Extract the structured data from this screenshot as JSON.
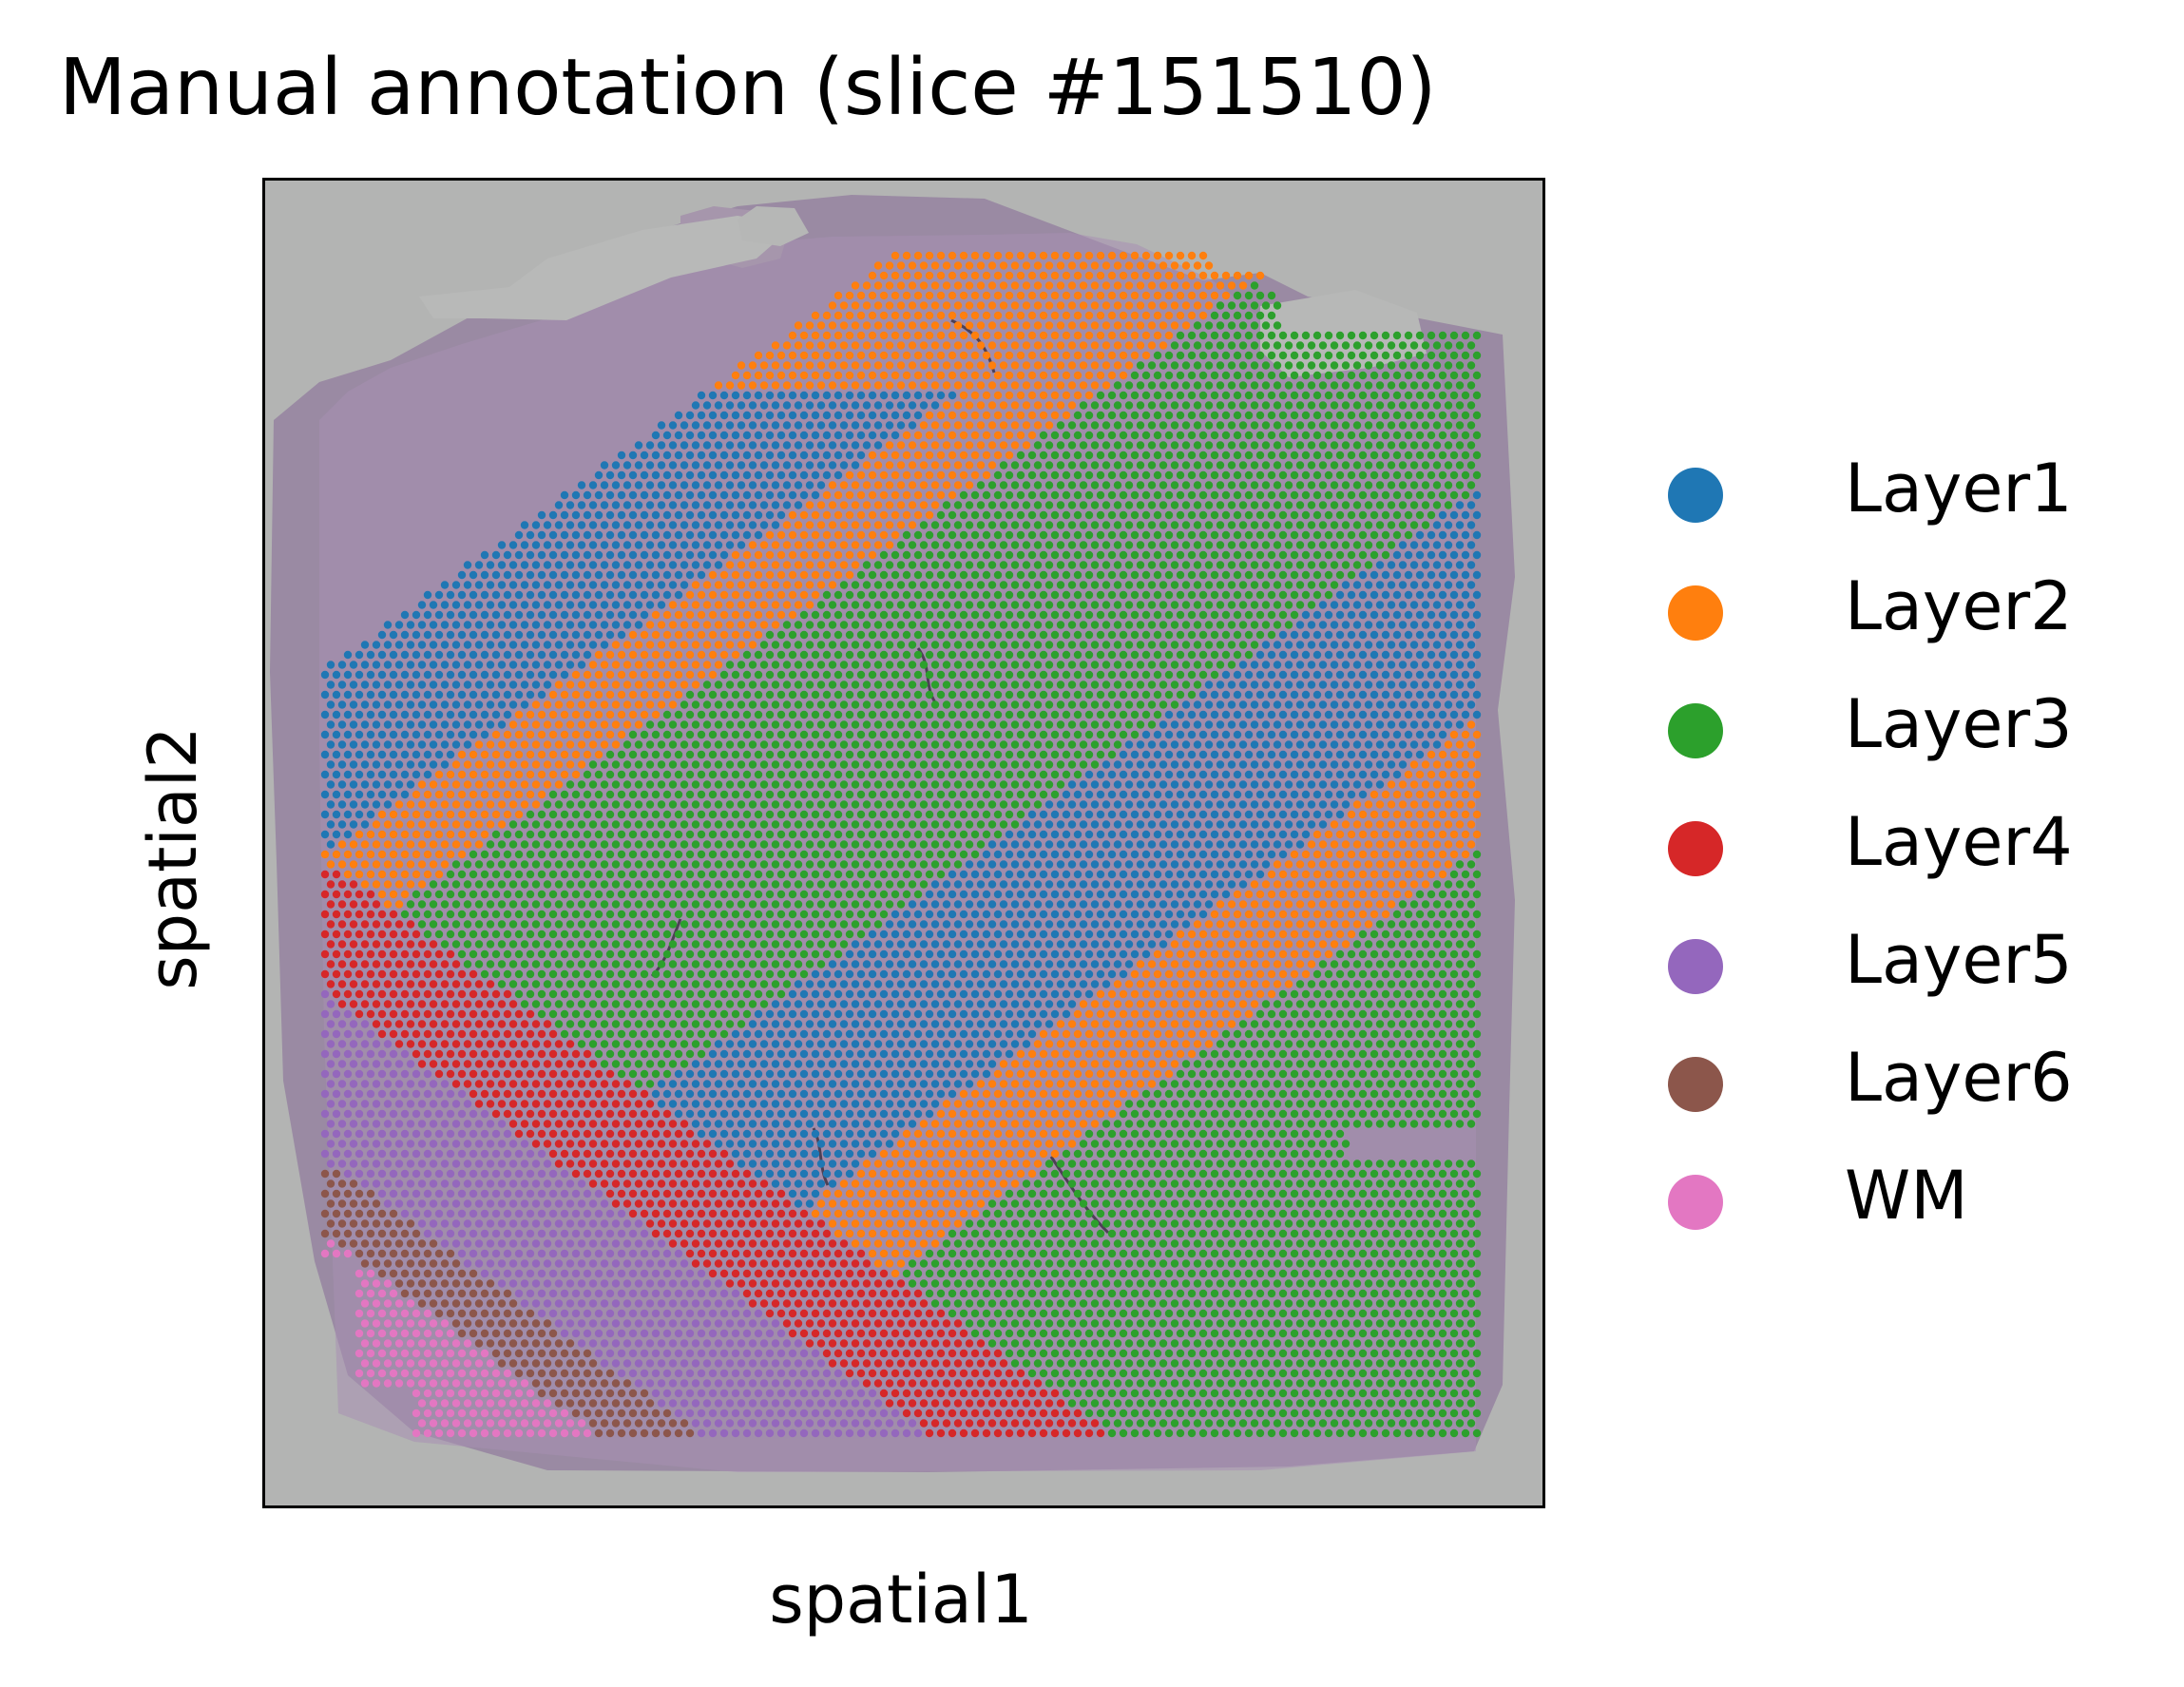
{
  "chart_data": {
    "type": "scatter",
    "title": "Manual annotation (slice #151510)",
    "xlabel": "spatial1",
    "ylabel": "spatial2",
    "xticks": [],
    "yticks": [],
    "background": "tissue histology image (H&E)",
    "legend_position": "right",
    "point_description": "Visium spots on a hexagonal grid, colored by annotated cortical layer; layers form diagonal bands from top-right to bottom-left",
    "categories": [
      "Layer1",
      "Layer2",
      "Layer3",
      "Layer4",
      "Layer5",
      "Layer6",
      "WM"
    ],
    "colors": {
      "Layer1": "#1f77b4",
      "Layer2": "#ff7f0e",
      "Layer3": "#2ca02c",
      "Layer4": "#d62728",
      "Layer5": "#9467bd",
      "Layer6": "#8c564b",
      "WM": "#e377c2"
    }
  }
}
